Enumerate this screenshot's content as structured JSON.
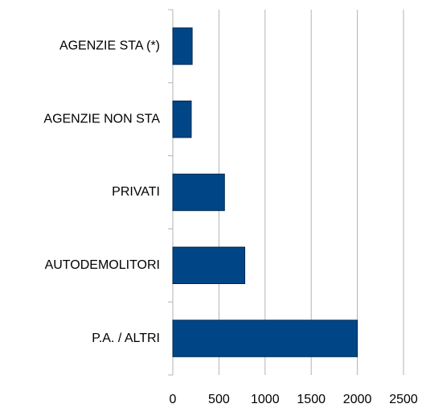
{
  "chart_data": {
    "type": "barh",
    "categories": [
      "AGENZIE STA (*)",
      "AGENZIE NON STA",
      "PRIVATI",
      "AUTODEMOLITORI",
      "P.A. / ALTRI"
    ],
    "values": [
      210,
      200,
      560,
      780,
      2000
    ],
    "color": "#004586",
    "xlim": [
      0,
      2500
    ],
    "xticks": [
      0,
      500,
      1000,
      1500,
      2000,
      2500
    ],
    "grid": true
  }
}
